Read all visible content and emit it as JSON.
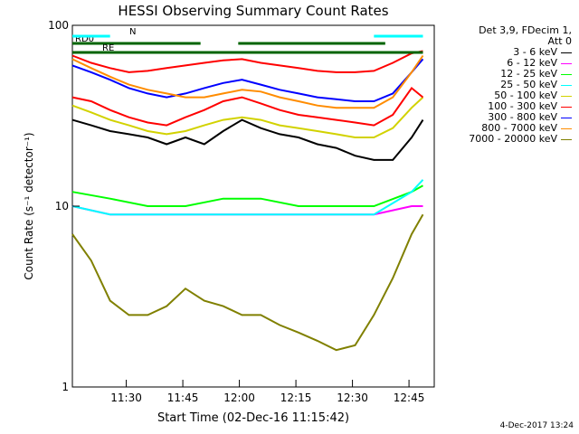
{
  "chart_data": {
    "type": "line",
    "title": "HESSI Observing Summary Count Rates",
    "xlabel": "Start Time (02-Dec-16 11:15:42)",
    "ylabel": "Count Rate (s⁻¹ detector⁻¹)",
    "yscale": "log",
    "ylim": [
      1,
      100
    ],
    "xlim_minutes_after_start": [
      0,
      96
    ],
    "x_ticks": [
      "11:30",
      "11:45",
      "12:00",
      "12:15",
      "12:30",
      "12:45"
    ],
    "y_ticks": [
      "1",
      "10",
      "100"
    ],
    "legend_header": [
      "Det 3,9, FDecim 1,",
      "Att 0"
    ],
    "legend_placement": "right",
    "grid": false,
    "series": [
      {
        "name": "3 - 6 keV",
        "color": "#000000",
        "x": [
          0,
          5,
          10,
          15,
          20,
          25,
          30,
          35,
          40,
          45,
          50,
          55,
          60,
          65,
          70,
          75,
          80,
          85,
          90,
          93
        ],
        "y": [
          30,
          28,
          26,
          25,
          24,
          22,
          24,
          22,
          26,
          30,
          27,
          25,
          24,
          22,
          21,
          19,
          18,
          18,
          24,
          30
        ]
      },
      {
        "name": "6 - 12 keV",
        "color": "#ff00ff",
        "x": [
          0,
          10,
          20,
          30,
          40,
          50,
          60,
          70,
          80,
          90,
          93
        ],
        "y": [
          10,
          9,
          9,
          9,
          9,
          9,
          9,
          9,
          9,
          10,
          10
        ]
      },
      {
        "name": "12 - 25 keV",
        "color": "#00ff00",
        "x": [
          0,
          10,
          20,
          30,
          40,
          50,
          60,
          70,
          80,
          90,
          93
        ],
        "y": [
          12,
          11,
          10,
          10,
          11,
          11,
          10,
          10,
          10,
          12,
          13
        ]
      },
      {
        "name": "25 - 50 keV",
        "color": "#00ffff",
        "x": [
          0,
          10,
          20,
          30,
          40,
          50,
          60,
          70,
          80,
          90,
          93
        ],
        "y": [
          10,
          9,
          9,
          9,
          9,
          9,
          9,
          9,
          9,
          12,
          14
        ]
      },
      {
        "name": "50 - 100 keV",
        "color": "#d2d200",
        "x": [
          0,
          5,
          10,
          15,
          20,
          25,
          30,
          35,
          40,
          45,
          50,
          55,
          60,
          65,
          70,
          75,
          80,
          85,
          90,
          93
        ],
        "y": [
          36,
          33,
          30,
          28,
          26,
          25,
          26,
          28,
          30,
          31,
          30,
          28,
          27,
          26,
          25,
          24,
          24,
          27,
          35,
          40
        ]
      },
      {
        "name": "100 - 300 keV",
        "color": "#ff0000",
        "x": [
          0,
          5,
          10,
          15,
          20,
          25,
          30,
          35,
          40,
          45,
          50,
          55,
          60,
          65,
          70,
          75,
          80,
          85,
          90,
          93
        ],
        "y": [
          40,
          38,
          34,
          31,
          29,
          28,
          31,
          34,
          38,
          40,
          37,
          34,
          32,
          31,
          30,
          29,
          28,
          32,
          45,
          40
        ]
      },
      {
        "name": "300 - 800 keV",
        "color": "#0000ff",
        "x": [
          0,
          5,
          10,
          15,
          20,
          25,
          30,
          35,
          40,
          45,
          50,
          55,
          60,
          65,
          70,
          75,
          80,
          85,
          90,
          93
        ],
        "y": [
          60,
          55,
          50,
          45,
          42,
          40,
          42,
          45,
          48,
          50,
          47,
          44,
          42,
          40,
          39,
          38,
          38,
          42,
          55,
          65
        ]
      },
      {
        "name": "800 - 7000 keV",
        "color": "#ff8c00",
        "x": [
          0,
          5,
          10,
          15,
          20,
          25,
          30,
          35,
          40,
          45,
          50,
          55,
          60,
          65,
          70,
          75,
          80,
          85,
          90,
          93
        ],
        "y": [
          65,
          58,
          52,
          47,
          44,
          42,
          40,
          40,
          42,
          44,
          43,
          40,
          38,
          36,
          35,
          35,
          35,
          40,
          55,
          68
        ]
      },
      {
        "name": "7000 - 20000 keV",
        "color": "#808000",
        "x": [
          0,
          5,
          10,
          15,
          20,
          25,
          30,
          35,
          40,
          45,
          50,
          55,
          60,
          65,
          70,
          75,
          80,
          85,
          90,
          93
        ],
        "y": [
          7,
          5,
          3,
          2.5,
          2.5,
          2.8,
          3.5,
          3,
          2.8,
          2.5,
          2.5,
          2.2,
          2.0,
          1.8,
          1.6,
          1.7,
          2.5,
          4,
          7,
          9
        ]
      },
      {
        "name": "",
        "color": "#ff0000",
        "x": [
          0,
          5,
          10,
          15,
          20,
          25,
          30,
          35,
          40,
          45,
          50,
          55,
          60,
          65,
          70,
          75,
          80,
          85,
          90,
          93
        ],
        "y": [
          68,
          62,
          58,
          55,
          56,
          58,
          60,
          62,
          64,
          65,
          62,
          60,
          58,
          56,
          55,
          55,
          56,
          62,
          70,
          72
        ]
      }
    ],
    "flags": [
      {
        "label": "RD0",
        "color": "#006400",
        "segments": [
          [
            0,
            34
          ],
          [
            44,
            83
          ]
        ]
      },
      {
        "label": "RE",
        "color": "#006400",
        "segments": [
          [
            0,
            93
          ]
        ]
      },
      {
        "label": "N",
        "color": "#00ffff",
        "segments": [
          [
            0,
            10
          ],
          [
            80,
            93
          ]
        ]
      }
    ]
  }
}
